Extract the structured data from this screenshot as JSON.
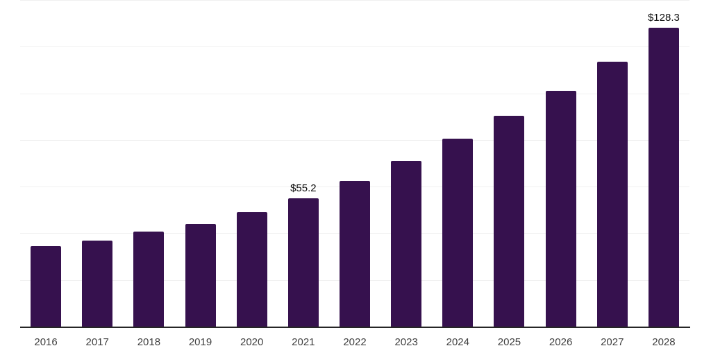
{
  "chart_data": {
    "type": "bar",
    "title": "",
    "xlabel": "",
    "ylabel": "",
    "categories": [
      "2016",
      "2017",
      "2018",
      "2019",
      "2020",
      "2021",
      "2022",
      "2023",
      "2024",
      "2025",
      "2026",
      "2027",
      "2028"
    ],
    "values": [
      34.7,
      37.3,
      40.9,
      44.3,
      49.4,
      55.2,
      62.7,
      71.2,
      80.9,
      90.6,
      101.4,
      113.7,
      128.3
    ],
    "data_labels": [
      null,
      null,
      null,
      null,
      null,
      "$55.2",
      null,
      null,
      null,
      null,
      null,
      null,
      "$128.3"
    ],
    "ylim": [
      0,
      140
    ],
    "grid_step": 20,
    "grid": true,
    "legend_position": "none",
    "y_axis_labels_visible": false,
    "colors": {
      "bar": "#36114e",
      "axis_line": "#262626",
      "gridline": "#f0f0f0",
      "tick_label": "#404040",
      "data_label": "#0d0d0d",
      "background": "#ffffff"
    }
  }
}
